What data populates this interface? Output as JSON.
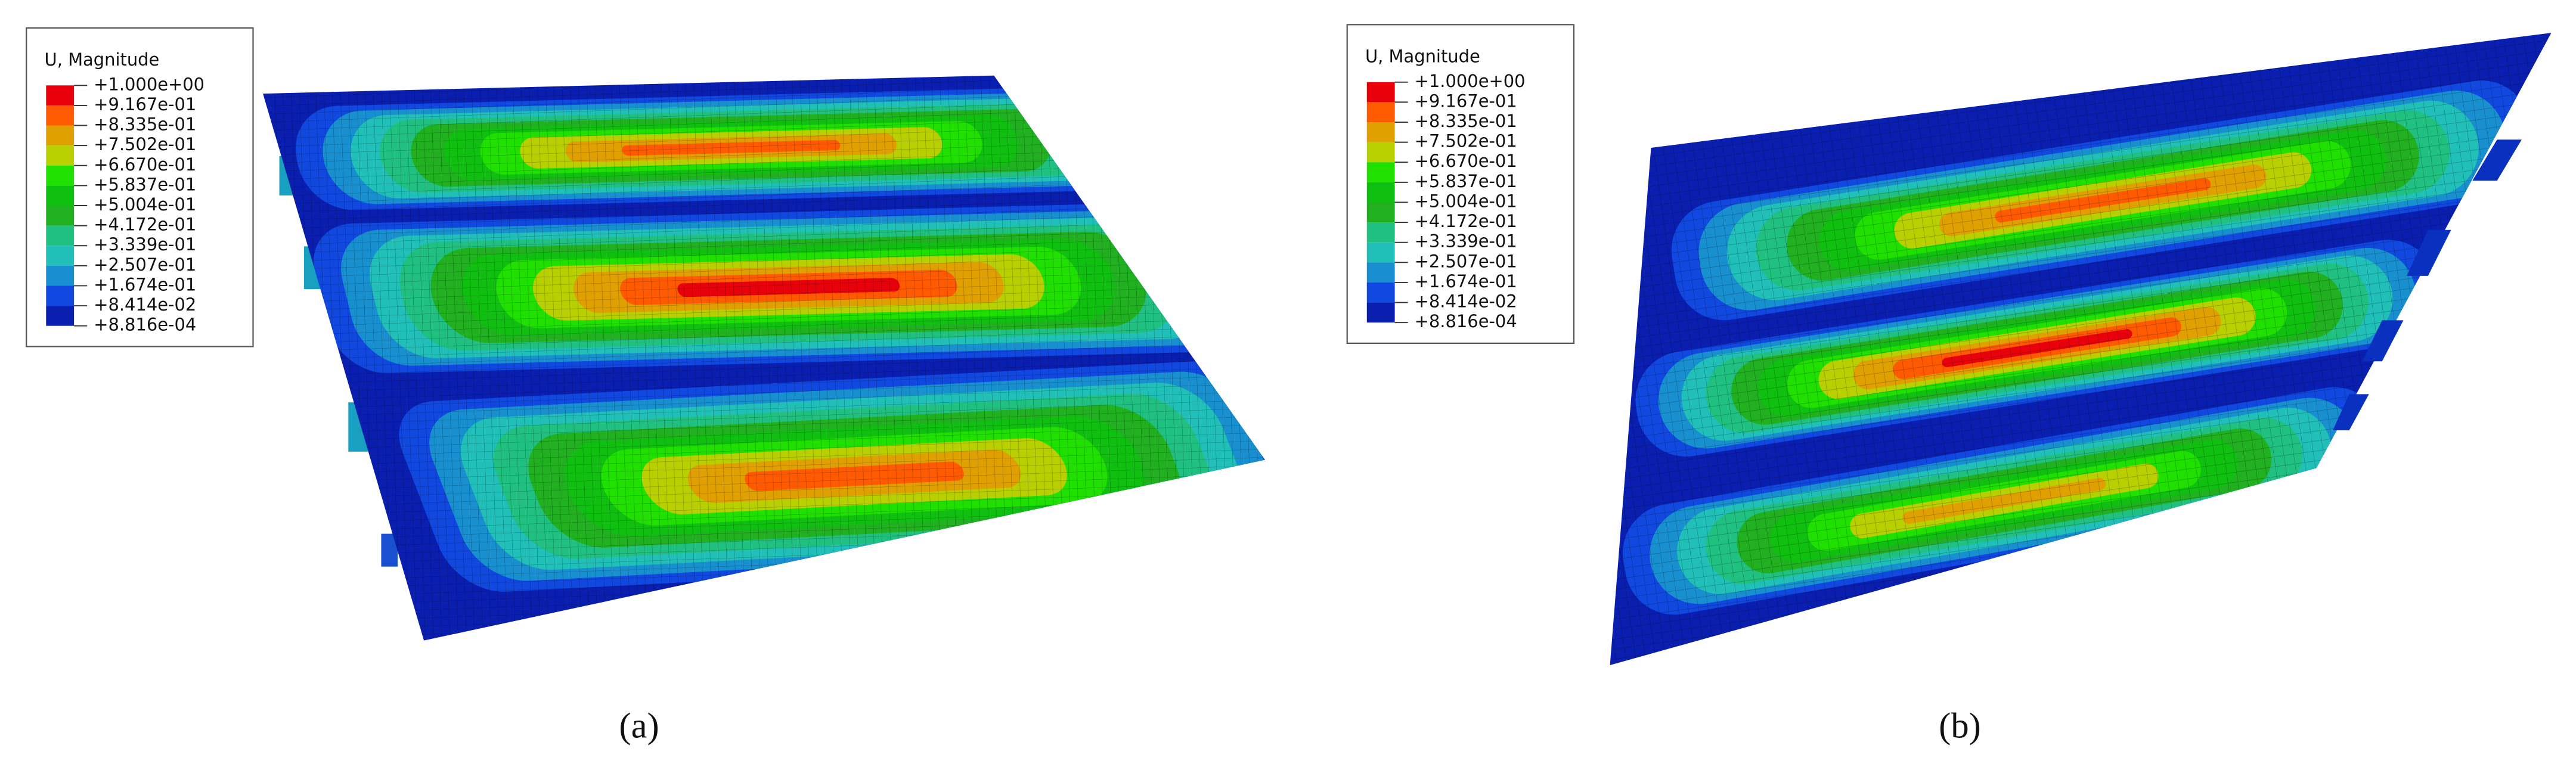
{
  "panels": [
    {
      "legend": {
        "title": "U, Magnitude",
        "labels": [
          "+1.000e+00",
          "+9.167e-01",
          "+8.335e-01",
          "+7.502e-01",
          "+6.670e-01",
          "+5.837e-01",
          "+5.004e-01",
          "+4.172e-01",
          "+3.339e-01",
          "+2.507e-01",
          "+1.674e-01",
          "+8.414e-02",
          "+8.816e-04"
        ]
      },
      "caption": "(a)"
    },
    {
      "legend": {
        "title": "U, Magnitude",
        "labels": [
          "+1.000e+00",
          "+9.167e-01",
          "+8.335e-01",
          "+7.502e-01",
          "+6.670e-01",
          "+5.837e-01",
          "+5.004e-01",
          "+4.172e-01",
          "+3.339e-01",
          "+2.507e-01",
          "+1.674e-01",
          "+8.414e-02",
          "+8.816e-04"
        ]
      },
      "caption": "(b)"
    }
  ]
}
